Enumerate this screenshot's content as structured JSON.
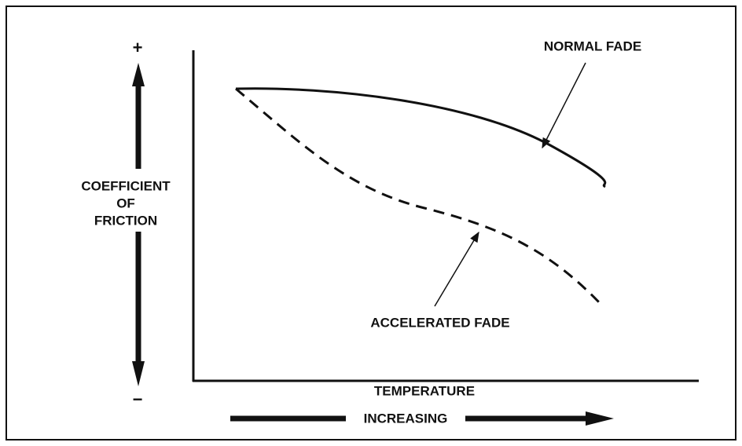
{
  "axes": {
    "y_plus": "+",
    "y_minus": "−",
    "y_label": [
      "COEFFICIENT",
      "OF",
      "FRICTION"
    ],
    "x_label": "TEMPERATURE",
    "x_arrow": "INCREASING"
  },
  "curves": [
    {
      "label": "NORMAL FADE"
    },
    {
      "label": "ACCELERATED FADE"
    }
  ]
}
